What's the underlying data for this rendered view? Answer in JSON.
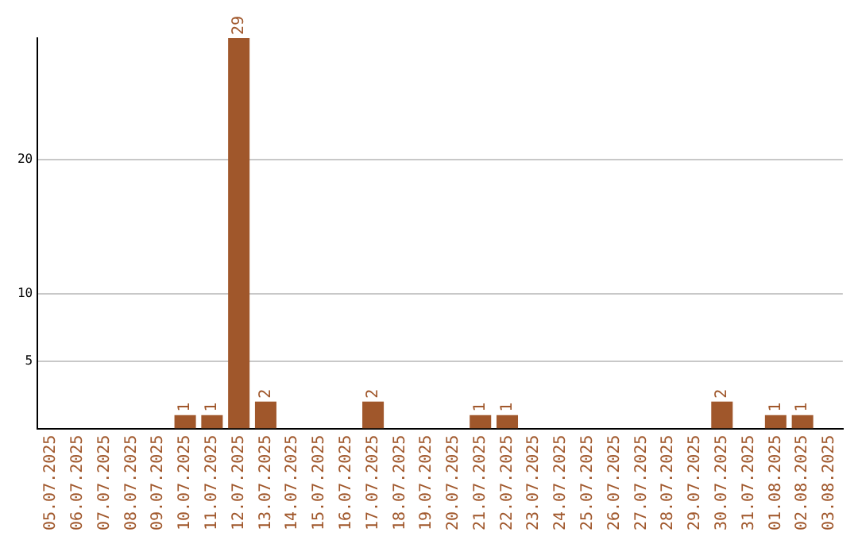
{
  "chart_data": {
    "type": "bar",
    "categories": [
      "05.07.2025",
      "06.07.2025",
      "07.07.2025",
      "08.07.2025",
      "09.07.2025",
      "10.07.2025",
      "11.07.2025",
      "12.07.2025",
      "13.07.2025",
      "14.07.2025",
      "15.07.2025",
      "16.07.2025",
      "17.07.2025",
      "18.07.2025",
      "19.07.2025",
      "20.07.2025",
      "21.07.2025",
      "22.07.2025",
      "23.07.2025",
      "24.07.2025",
      "25.07.2025",
      "26.07.2025",
      "27.07.2025",
      "28.07.2025",
      "29.07.2025",
      "30.07.2025",
      "31.07.2025",
      "01.08.2025",
      "02.08.2025",
      "03.08.2025"
    ],
    "values": [
      0,
      0,
      0,
      0,
      0,
      1,
      1,
      29,
      2,
      0,
      0,
      0,
      2,
      0,
      0,
      0,
      1,
      1,
      0,
      0,
      0,
      0,
      0,
      0,
      0,
      2,
      0,
      1,
      1,
      0
    ],
    "value_labels": [
      null,
      null,
      null,
      null,
      null,
      "1",
      "1",
      "29",
      "2",
      null,
      null,
      null,
      "2",
      null,
      null,
      null,
      "1",
      "1",
      null,
      null,
      null,
      null,
      null,
      null,
      null,
      "2",
      null,
      "1",
      "1",
      null
    ],
    "color": "#a0572b",
    "ylim": [
      0,
      29
    ],
    "yticks": [
      5,
      10,
      20
    ],
    "grid": "y"
  }
}
